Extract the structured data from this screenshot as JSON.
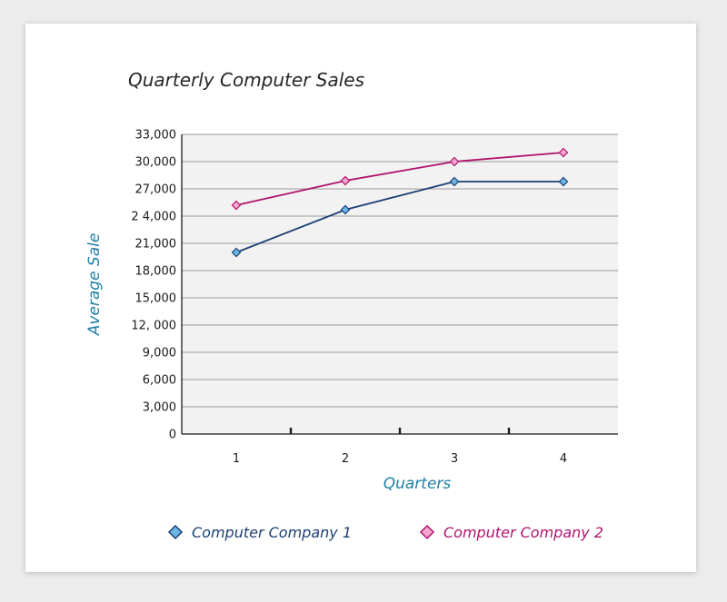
{
  "chart_data": {
    "type": "line",
    "title": "Quarterly Computer Sales",
    "xlabel": "Quarters",
    "ylabel": "Average Sale",
    "categories": [
      "1",
      "2",
      "3",
      "4"
    ],
    "ylim": [
      0,
      33000
    ],
    "y_ticks": [
      0,
      3000,
      6000,
      9000,
      12000,
      15000,
      18000,
      21000,
      24000,
      27000,
      30000,
      33000
    ],
    "y_tick_labels": [
      "0",
      "3,000",
      "6,000",
      "9,000",
      "12, 000",
      "15,000",
      "18,000",
      "21,000",
      "2 4,000",
      "27,000",
      "30,000",
      "33,000"
    ],
    "grid": true,
    "legend_position": "bottom",
    "series": [
      {
        "name": "Computer Company 1",
        "values": [
          20000,
          24700,
          27800,
          27800
        ],
        "color": "#1c3f72",
        "marker_fill": "#6bb6e6"
      },
      {
        "name": "Computer Company 2",
        "values": [
          25200,
          27900,
          30000,
          31000
        ],
        "color": "#b0146e",
        "marker_fill": "#f2a6cf"
      }
    ]
  }
}
